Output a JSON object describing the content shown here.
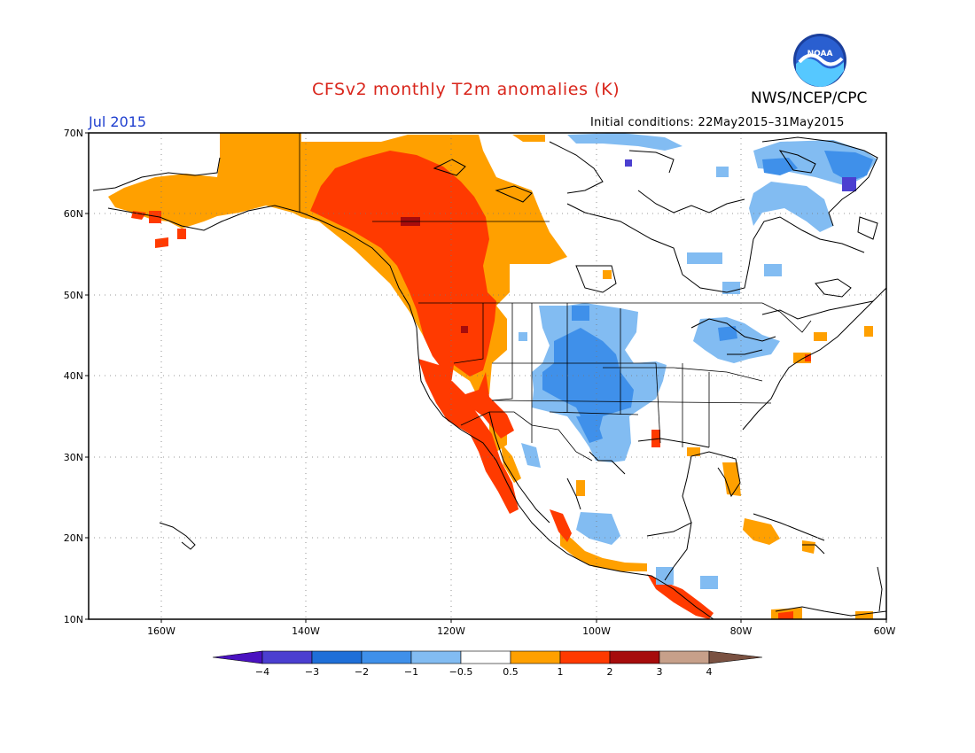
{
  "title": "CFSv2 monthly T2m anomalies (K)",
  "organization": "NWS/NCEP/CPC",
  "logo_text": "NOAA",
  "valid_month": "Jul 2015",
  "initial_conditions": "Initial conditions: 22May2015–31May2015",
  "map": {
    "lat_labels": [
      "70N",
      "60N",
      "50N",
      "40N",
      "30N",
      "20N",
      "10N"
    ],
    "lon_labels": [
      "160W",
      "140W",
      "120W",
      "100W",
      "80W",
      "60W"
    ]
  },
  "legend": {
    "labels": [
      "−4",
      "−3",
      "−2",
      "−1",
      "−0.5",
      "0.5",
      "1",
      "2",
      "3",
      "4"
    ],
    "colors": [
      "#4a12c0",
      "#4b3fd0",
      "#1f6fd8",
      "#3f90ea",
      "#82bcf2",
      "#ffffff",
      "#ffa000",
      "#ff3a00",
      "#a60c0c",
      "#c7a08a",
      "#7a5141",
      "#2a129f"
    ]
  },
  "colors": {
    "warm1": "#ffa000",
    "warm2": "#ff3a00",
    "warm3": "#a60c0c",
    "cool1": "#82bcf2",
    "cool2": "#3f90ea",
    "cool3": "#1f6fd8",
    "cool4": "#4b3fd0"
  }
}
